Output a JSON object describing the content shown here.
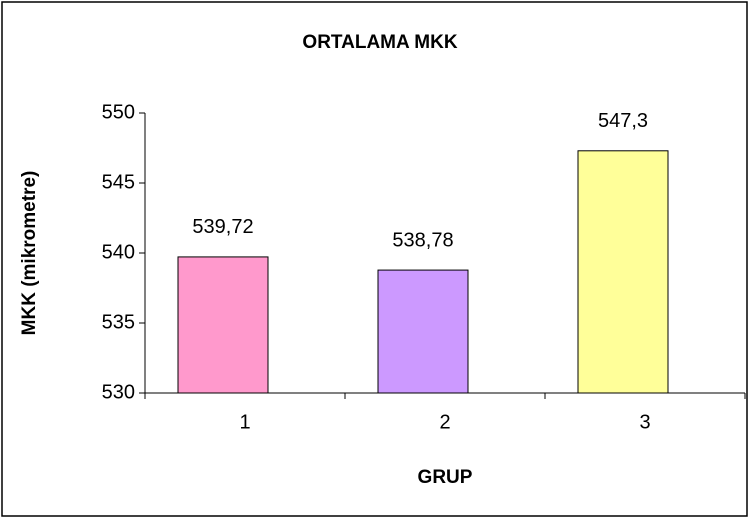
{
  "chart_data": {
    "type": "bar",
    "title": "ORTALAMA MKK",
    "x_label": "GRUP",
    "y_label": "MKK (mikrometre)",
    "categories": [
      "1",
      "2",
      "3"
    ],
    "values": [
      539.72,
      538.78,
      547.3
    ],
    "value_labels": [
      "539,72",
      "538,78",
      "547,3"
    ],
    "colors": [
      "#ff99cc",
      "#cc99ff",
      "#ffff99"
    ],
    "ylim": [
      530,
      550
    ],
    "yticks": [
      530,
      535,
      540,
      545,
      550
    ],
    "grid": false
  }
}
